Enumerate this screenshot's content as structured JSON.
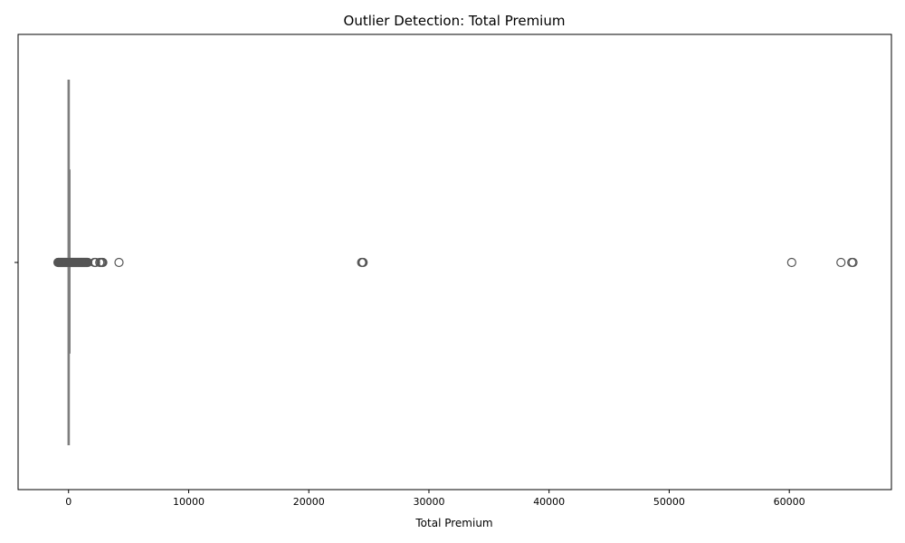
{
  "chart_data": {
    "type": "box",
    "title": "Outlier Detection: Total Premium",
    "xlabel": "Total Premium",
    "ylabel": "",
    "orientation": "horizontal",
    "xlim": [
      -4200,
      68500
    ],
    "xticks": [
      0,
      10000,
      20000,
      30000,
      40000,
      50000,
      60000
    ],
    "grid": false,
    "box": {
      "q1": 0,
      "median": 2,
      "q3": 22,
      "whisker_low": -33,
      "whisker_high": 55
    },
    "outliers": [
      -880,
      -840,
      -800,
      -760,
      -720,
      -680,
      -640,
      -600,
      -560,
      -520,
      -480,
      -440,
      -400,
      -360,
      -320,
      -280,
      -240,
      -200,
      -160,
      -120,
      -80,
      80,
      120,
      160,
      200,
      240,
      280,
      320,
      360,
      400,
      440,
      480,
      520,
      560,
      600,
      640,
      680,
      720,
      760,
      800,
      840,
      880,
      920,
      960,
      1000,
      1040,
      1080,
      1120,
      1160,
      1200,
      1240,
      1280,
      1320,
      1360,
      1400,
      1440,
      1480,
      1520,
      1560,
      1600,
      2150,
      2250,
      2600,
      2700,
      2780,
      2850,
      4200,
      24400,
      24480,
      24520,
      60200,
      64300,
      65200,
      65300
    ]
  }
}
